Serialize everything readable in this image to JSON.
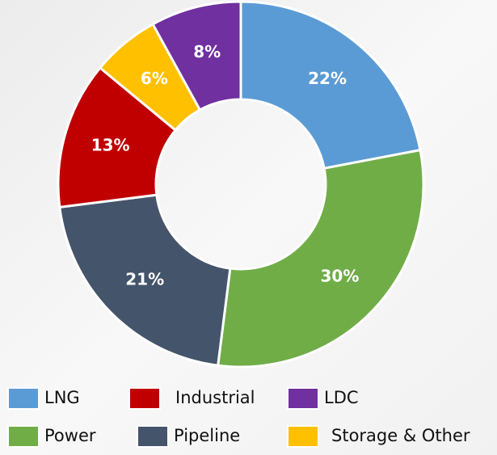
{
  "chart_data": {
    "type": "donut",
    "categories": [
      "LNG",
      "Power",
      "Pipeline",
      "Industrial",
      "Storage & Other",
      "LDC"
    ],
    "values": [
      22,
      30,
      21,
      13,
      6,
      8
    ],
    "value_labels": [
      "22%",
      "30%",
      "21%",
      "13%",
      "6%",
      "8%"
    ],
    "colors": [
      "#5b9bd5",
      "#70ad47",
      "#44546a",
      "#c00000",
      "#ffc000",
      "#7030a0"
    ]
  }
}
